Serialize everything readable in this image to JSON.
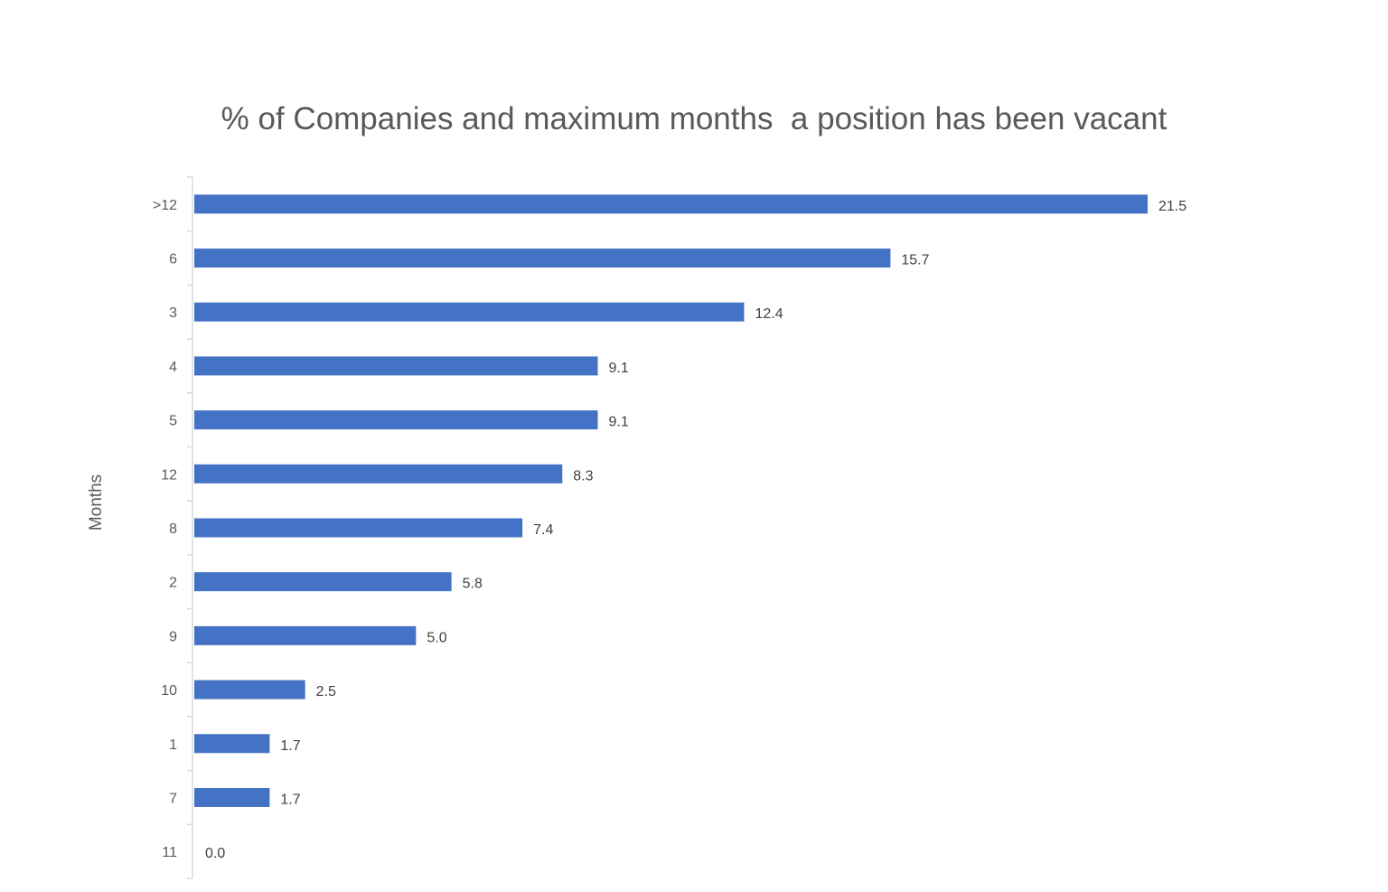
{
  "chart_data": {
    "type": "bar",
    "orientation": "horizontal",
    "title": "% of Companies and maximum months  a position has been vacant",
    "xlabel": "",
    "ylabel": "Months",
    "categories": [
      ">12",
      "6",
      "3",
      "4",
      "5",
      "12",
      "8",
      "2",
      "9",
      "10",
      "1",
      "7",
      "11"
    ],
    "values": [
      21.5,
      15.7,
      12.4,
      9.1,
      9.1,
      8.3,
      7.4,
      5.8,
      5.0,
      2.5,
      1.7,
      1.7,
      0.0
    ],
    "data_labels": [
      "21.5",
      "15.7",
      "12.4",
      "9.1",
      "9.1",
      "8.3",
      "7.4",
      "5.8",
      "5.0",
      "2.5",
      "1.7",
      "1.7",
      "0.0"
    ],
    "xlim": [
      0,
      21.5
    ],
    "grid": false,
    "legend": "none",
    "bar_color": "#4472C4",
    "axis_color": "#D9D9D9",
    "text_color": "#595959"
  }
}
